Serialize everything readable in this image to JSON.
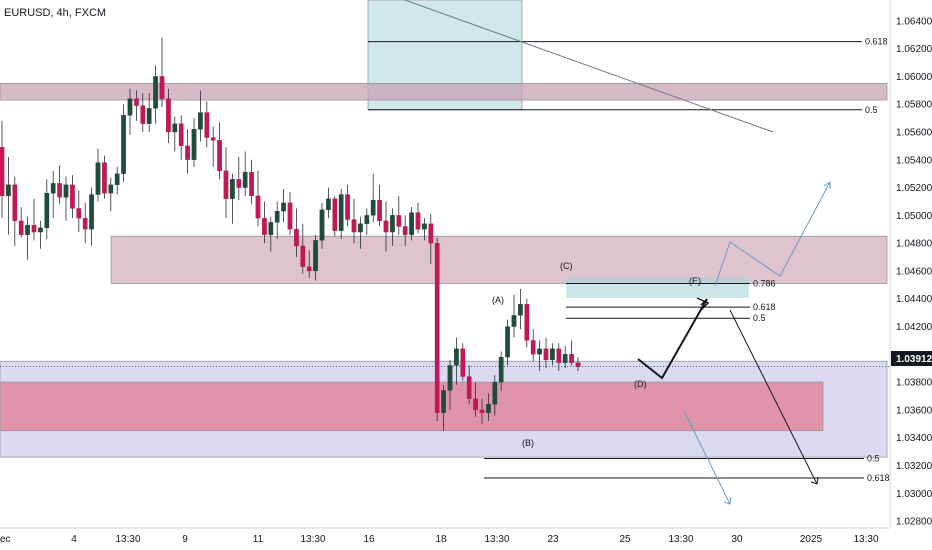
{
  "chart_data": {
    "type": "candlestick",
    "title": "EURUSD, 4h, FXCM",
    "current_price": "1.03912",
    "ylim": [
      1.0275,
      1.0655
    ],
    "y_ticks": [
      "1.06400",
      "1.06200",
      "1.06000",
      "1.05800",
      "1.05600",
      "1.05400",
      "1.05200",
      "1.05000",
      "1.04800",
      "1.04600",
      "1.04400",
      "1.04200",
      "1.04000",
      "1.03800",
      "1.03600",
      "1.03400",
      "1.03200",
      "1.03000",
      "1.02800"
    ],
    "x_ticks": [
      "ec",
      "4",
      "13:30",
      "9",
      "11",
      "13:30",
      "16",
      "18",
      "13:30",
      "23",
      "25",
      "13:30",
      "30",
      "2025",
      "13:30"
    ],
    "wave_labels": [
      "(A)",
      "(B)",
      "(C)",
      "(D)",
      "(E)"
    ],
    "fib_upper": [
      "0.618",
      "0.5"
    ],
    "fib_mid": [
      "0.786",
      "0.618",
      "0.5"
    ],
    "fib_lower": [
      "0.5",
      "0.618"
    ],
    "fib_upper_values": [
      1.0625,
      1.0576
    ],
    "fib_mid_values": [
      1.0451,
      1.0434,
      1.0426
    ],
    "fib_lower_values": [
      1.0325,
      1.0311
    ],
    "zones": [
      {
        "name": "supply-zone-upper",
        "from": 1.0583,
        "to": 1.0595,
        "color": "#c9a3b3"
      },
      {
        "name": "supply-zone-mid",
        "from": 1.0451,
        "to": 1.0485,
        "color": "#d2a9b8"
      },
      {
        "name": "demand-zone-lower-outer",
        "from": 1.0326,
        "to": 1.0395,
        "color": "#cccbeb"
      },
      {
        "name": "demand-zone-lower-inner",
        "from": 1.0345,
        "to": 1.038,
        "color": "#e1879f"
      },
      {
        "name": "target-zone-top",
        "from": 1.0576,
        "to": 1.0655,
        "color": "#a8d6d9"
      }
    ],
    "bull_color": "#089981",
    "bear_color": "#f23645",
    "candles_ohlc": [
      [
        1.0549,
        1.0568,
        1.0498,
        1.0514
      ],
      [
        1.0514,
        1.0542,
        1.0486,
        1.0522
      ],
      [
        1.0522,
        1.0528,
        1.0478,
        1.0496
      ],
      [
        1.0496,
        1.0506,
        1.0484,
        1.0486
      ],
      [
        1.0486,
        1.0499,
        1.0468,
        1.0493
      ],
      [
        1.0493,
        1.0512,
        1.0482,
        1.0488
      ],
      [
        1.0488,
        1.0496,
        1.0476,
        1.0491
      ],
      [
        1.0491,
        1.0526,
        1.0483,
        1.0516
      ],
      [
        1.0516,
        1.0532,
        1.0498,
        1.0523
      ],
      [
        1.0523,
        1.0536,
        1.0508,
        1.0513
      ],
      [
        1.0513,
        1.0528,
        1.0496,
        1.0522
      ],
      [
        1.0522,
        1.0529,
        1.0498,
        1.0505
      ],
      [
        1.0505,
        1.0518,
        1.0488,
        1.0498
      ],
      [
        1.0498,
        1.0509,
        1.048,
        1.049
      ],
      [
        1.049,
        1.052,
        1.0478,
        1.0515
      ],
      [
        1.0515,
        1.0548,
        1.051,
        1.0538
      ],
      [
        1.0538,
        1.0543,
        1.0512,
        1.0516
      ],
      [
        1.0516,
        1.0527,
        1.0503,
        1.0522
      ],
      [
        1.0522,
        1.0535,
        1.0515,
        1.053
      ],
      [
        1.053,
        1.058,
        1.0524,
        1.0572
      ],
      [
        1.0572,
        1.0591,
        1.0558,
        1.0584
      ],
      [
        1.0584,
        1.059,
        1.0568,
        1.0579
      ],
      [
        1.0579,
        1.0588,
        1.056,
        1.0566
      ],
      [
        1.0566,
        1.0588,
        1.056,
        1.0577
      ],
      [
        1.0577,
        1.0608,
        1.0566,
        1.06
      ],
      [
        1.06,
        1.0628,
        1.0578,
        1.0584
      ],
      [
        1.0584,
        1.0591,
        1.0552,
        1.056
      ],
      [
        1.056,
        1.0571,
        1.0546,
        1.0566
      ],
      [
        1.0566,
        1.0572,
        1.054,
        1.055
      ],
      [
        1.055,
        1.0562,
        1.053,
        1.054
      ],
      [
        1.054,
        1.057,
        1.0535,
        1.0562
      ],
      [
        1.0562,
        1.059,
        1.0553,
        1.0574
      ],
      [
        1.0574,
        1.0582,
        1.0549,
        1.0556
      ],
      [
        1.0556,
        1.0564,
        1.0535,
        1.0554
      ],
      [
        1.0554,
        1.0567,
        1.0526,
        1.0532
      ],
      [
        1.0532,
        1.0549,
        1.0498,
        1.0512
      ],
      [
        1.0512,
        1.053,
        1.0494,
        1.0526
      ],
      [
        1.0526,
        1.0542,
        1.0511,
        1.052
      ],
      [
        1.052,
        1.0546,
        1.0514,
        1.0531
      ],
      [
        1.0531,
        1.054,
        1.0508,
        1.0514
      ],
      [
        1.0514,
        1.0532,
        1.0492,
        1.0498
      ],
      [
        1.0498,
        1.051,
        1.048,
        1.0486
      ],
      [
        1.0486,
        1.0499,
        1.0474,
        1.0495
      ],
      [
        1.0495,
        1.051,
        1.0483,
        1.0503
      ],
      [
        1.0503,
        1.0519,
        1.0495,
        1.0509
      ],
      [
        1.0509,
        1.0517,
        1.0486,
        1.049
      ],
      [
        1.049,
        1.0505,
        1.047,
        1.0478
      ],
      [
        1.0478,
        1.0494,
        1.0458,
        1.0463
      ],
      [
        1.0463,
        1.0475,
        1.0455,
        1.046
      ],
      [
        1.046,
        1.0486,
        1.0453,
        1.0482
      ],
      [
        1.0482,
        1.0509,
        1.0476,
        1.0504
      ],
      [
        1.0504,
        1.052,
        1.0498,
        1.0512
      ],
      [
        1.0512,
        1.0514,
        1.0485,
        1.0489
      ],
      [
        1.0489,
        1.0519,
        1.0483,
        1.0515
      ],
      [
        1.0515,
        1.0522,
        1.0492,
        1.0497
      ],
      [
        1.0497,
        1.0512,
        1.048,
        1.0488
      ],
      [
        1.0488,
        1.0499,
        1.0476,
        1.0494
      ],
      [
        1.0494,
        1.0505,
        1.0486,
        1.05
      ],
      [
        1.05,
        1.053,
        1.0495,
        1.0511
      ],
      [
        1.0511,
        1.0522,
        1.0492,
        1.0496
      ],
      [
        1.0496,
        1.051,
        1.0474,
        1.0488
      ],
      [
        1.0488,
        1.0505,
        1.0478,
        1.05
      ],
      [
        1.05,
        1.0514,
        1.0486,
        1.0492
      ],
      [
        1.0492,
        1.05,
        1.0478,
        1.0486
      ],
      [
        1.0486,
        1.0506,
        1.0482,
        1.0502
      ],
      [
        1.0502,
        1.0509,
        1.0487,
        1.049
      ],
      [
        1.049,
        1.0498,
        1.0482,
        1.0494
      ],
      [
        1.0494,
        1.0501,
        1.0465,
        1.048
      ],
      [
        1.048,
        1.0484,
        1.0352,
        1.0358
      ],
      [
        1.0358,
        1.0378,
        1.0345,
        1.0374
      ],
      [
        1.0374,
        1.0396,
        1.036,
        1.0392
      ],
      [
        1.0392,
        1.0412,
        1.0378,
        1.0404
      ],
      [
        1.0404,
        1.0408,
        1.0381,
        1.0384
      ],
      [
        1.0384,
        1.0392,
        1.0364,
        1.0368
      ],
      [
        1.0368,
        1.038,
        1.0355,
        1.036
      ],
      [
        1.036,
        1.0368,
        1.035,
        1.0358
      ],
      [
        1.0358,
        1.0372,
        1.0352,
        1.0364
      ],
      [
        1.0364,
        1.0385,
        1.0356,
        1.038
      ],
      [
        1.038,
        1.0402,
        1.0374,
        1.0398
      ],
      [
        1.0398,
        1.0425,
        1.0392,
        1.042
      ],
      [
        1.042,
        1.0443,
        1.0412,
        1.0428
      ],
      [
        1.0428,
        1.0447,
        1.0418,
        1.0436
      ],
      [
        1.0436,
        1.044,
        1.0405,
        1.041
      ],
      [
        1.041,
        1.0418,
        1.0395,
        1.04
      ],
      [
        1.04,
        1.041,
        1.0388,
        1.0404
      ],
      [
        1.0404,
        1.0412,
        1.039,
        1.0396
      ],
      [
        1.0396,
        1.0408,
        1.0392,
        1.0404
      ],
      [
        1.0404,
        1.0408,
        1.0388,
        1.0394
      ],
      [
        1.0394,
        1.0406,
        1.039,
        1.04
      ],
      [
        1.04,
        1.041,
        1.0392,
        1.0394
      ],
      [
        1.0394,
        1.0398,
        1.0388,
        1.0391
      ]
    ],
    "grid": false
  }
}
